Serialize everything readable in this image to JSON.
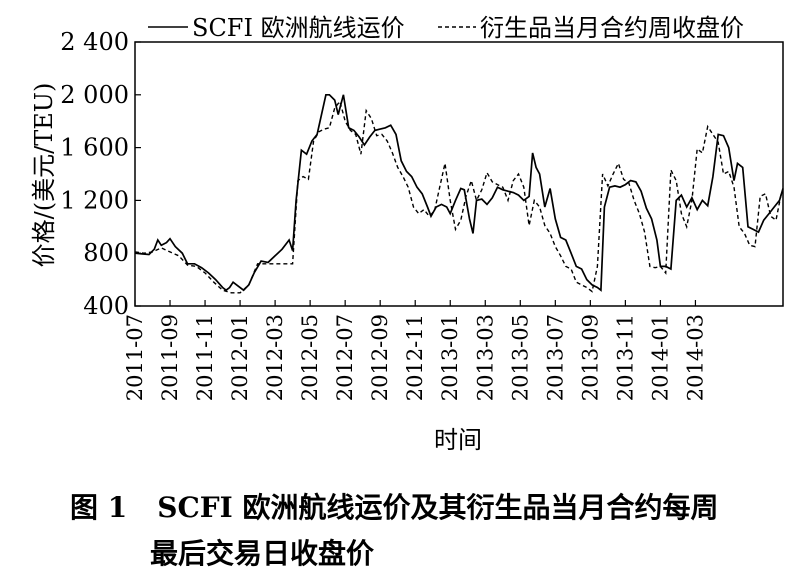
{
  "chart_data": {
    "type": "line",
    "ylabel": "价格/(美元/TEU)",
    "xlabel": "时间",
    "ylim": [
      400,
      2400
    ],
    "yticks": [
      "2 400",
      "2 000",
      "1 600",
      "1 200",
      "800",
      "400"
    ],
    "ytick_values": [
      2400,
      2000,
      1600,
      1200,
      800,
      400
    ],
    "xticks": [
      "2011-07",
      "2011-09",
      "2011-11",
      "2012-01",
      "2012-03",
      "2012-05",
      "2012-07",
      "2012-09",
      "2012-11",
      "2013-01",
      "2013-03",
      "2013-05",
      "2013-07",
      "2013-09",
      "2013-11",
      "2014-01",
      "2014-03"
    ],
    "x_range_months": [
      0,
      34.4
    ],
    "legend": "top",
    "series": [
      {
        "name": "SCFI 欧洲航线运价",
        "style": "solid",
        "points": [
          [
            0,
            800
          ],
          [
            0.4,
            795
          ],
          [
            0.8,
            790
          ],
          [
            1.1,
            830
          ],
          [
            1.3,
            900
          ],
          [
            1.5,
            860
          ],
          [
            1.8,
            880
          ],
          [
            2.0,
            910
          ],
          [
            2.3,
            850
          ],
          [
            2.7,
            800
          ],
          [
            3.0,
            720
          ],
          [
            3.4,
            720
          ],
          [
            3.8,
            690
          ],
          [
            4.2,
            650
          ],
          [
            4.6,
            600
          ],
          [
            5.0,
            540
          ],
          [
            5.2,
            520
          ],
          [
            5.4,
            540
          ],
          [
            5.6,
            580
          ],
          [
            5.9,
            550
          ],
          [
            6.2,
            520
          ],
          [
            6.5,
            560
          ],
          [
            6.8,
            650
          ],
          [
            7.2,
            740
          ],
          [
            7.6,
            730
          ],
          [
            8.0,
            780
          ],
          [
            8.4,
            830
          ],
          [
            8.8,
            900
          ],
          [
            9.0,
            820
          ],
          [
            9.2,
            1200
          ],
          [
            9.5,
            1580
          ],
          [
            9.8,
            1550
          ],
          [
            10.1,
            1650
          ],
          [
            10.4,
            1700
          ],
          [
            10.7,
            1880
          ],
          [
            10.9,
            2000
          ],
          [
            11.1,
            2000
          ],
          [
            11.4,
            1960
          ],
          [
            11.6,
            1850
          ],
          [
            11.9,
            2000
          ],
          [
            12.2,
            1750
          ],
          [
            12.5,
            1730
          ],
          [
            12.8,
            1680
          ],
          [
            13.1,
            1620
          ],
          [
            13.4,
            1680
          ],
          [
            13.7,
            1730
          ],
          [
            14.0,
            1740
          ],
          [
            14.3,
            1750
          ],
          [
            14.6,
            1770
          ],
          [
            14.9,
            1700
          ],
          [
            15.2,
            1500
          ],
          [
            15.5,
            1420
          ],
          [
            15.8,
            1380
          ],
          [
            16.1,
            1300
          ],
          [
            16.4,
            1250
          ],
          [
            16.7,
            1150
          ],
          [
            16.9,
            1080
          ],
          [
            17.2,
            1150
          ],
          [
            17.5,
            1170
          ],
          [
            17.8,
            1150
          ],
          [
            18.0,
            1100
          ],
          [
            18.3,
            1200
          ],
          [
            18.6,
            1290
          ],
          [
            18.8,
            1280
          ],
          [
            19.1,
            1060
          ],
          [
            19.3,
            950
          ],
          [
            19.5,
            1200
          ],
          [
            19.8,
            1210
          ],
          [
            20.1,
            1170
          ],
          [
            20.4,
            1220
          ],
          [
            20.7,
            1300
          ],
          [
            21.0,
            1280
          ],
          [
            21.3,
            1270
          ],
          [
            21.6,
            1260
          ],
          [
            21.9,
            1240
          ],
          [
            22.2,
            1200
          ],
          [
            22.5,
            1230
          ],
          [
            22.7,
            1560
          ],
          [
            22.9,
            1450
          ],
          [
            23.1,
            1400
          ],
          [
            23.4,
            1150
          ],
          [
            23.7,
            1290
          ],
          [
            24.0,
            1060
          ],
          [
            24.3,
            920
          ],
          [
            24.6,
            900
          ],
          [
            24.9,
            800
          ],
          [
            25.2,
            700
          ],
          [
            25.5,
            680
          ],
          [
            25.8,
            600
          ],
          [
            26.1,
            560
          ],
          [
            26.4,
            540
          ],
          [
            26.6,
            520
          ],
          [
            26.8,
            1150
          ],
          [
            27.1,
            1300
          ],
          [
            27.4,
            1310
          ],
          [
            27.7,
            1300
          ],
          [
            28.0,
            1320
          ],
          [
            28.3,
            1350
          ],
          [
            28.6,
            1340
          ],
          [
            28.9,
            1270
          ],
          [
            29.2,
            1140
          ],
          [
            29.5,
            1060
          ],
          [
            29.8,
            900
          ],
          [
            30.0,
            700
          ],
          [
            30.3,
            700
          ],
          [
            30.6,
            680
          ],
          [
            30.9,
            1200
          ],
          [
            31.2,
            1240
          ],
          [
            31.5,
            1150
          ],
          [
            31.8,
            1220
          ],
          [
            32.1,
            1130
          ],
          [
            32.4,
            1200
          ],
          [
            32.7,
            1160
          ],
          [
            33.0,
            1380
          ],
          [
            33.3,
            1700
          ],
          [
            33.6,
            1690
          ],
          [
            33.9,
            1600
          ],
          [
            34.2,
            1350
          ],
          [
            34.4,
            1480
          ],
          [
            34.7,
            1450
          ],
          [
            35.0,
            1000
          ],
          [
            35.3,
            980
          ],
          [
            35.6,
            960
          ],
          [
            35.9,
            1050
          ],
          [
            36.2,
            1100
          ],
          [
            36.5,
            1150
          ],
          [
            36.8,
            1200
          ],
          [
            37.0,
            1290
          ]
        ]
      },
      {
        "name": "衍生品当月合约周收盘价",
        "style": "dashed",
        "points": [
          [
            0,
            810
          ],
          [
            0.5,
            800
          ],
          [
            1.0,
            810
          ],
          [
            1.5,
            840
          ],
          [
            2.0,
            810
          ],
          [
            2.5,
            780
          ],
          [
            3.0,
            710
          ],
          [
            3.5,
            700
          ],
          [
            4.0,
            650
          ],
          [
            4.5,
            580
          ],
          [
            5.0,
            520
          ],
          [
            5.5,
            500
          ],
          [
            6.0,
            500
          ],
          [
            6.5,
            560
          ],
          [
            7.0,
            720
          ],
          [
            7.5,
            720
          ],
          [
            8.0,
            720
          ],
          [
            8.5,
            720
          ],
          [
            9.0,
            720
          ],
          [
            9.3,
            1350
          ],
          [
            9.6,
            1380
          ],
          [
            9.9,
            1360
          ],
          [
            10.2,
            1650
          ],
          [
            10.5,
            1720
          ],
          [
            10.8,
            1740
          ],
          [
            11.1,
            1750
          ],
          [
            11.4,
            1900
          ],
          [
            11.7,
            1950
          ],
          [
            12.0,
            1800
          ],
          [
            12.3,
            1730
          ],
          [
            12.6,
            1700
          ],
          [
            12.9,
            1550
          ],
          [
            13.2,
            1880
          ],
          [
            13.5,
            1820
          ],
          [
            13.8,
            1690
          ],
          [
            14.1,
            1700
          ],
          [
            14.4,
            1650
          ],
          [
            14.7,
            1560
          ],
          [
            15.0,
            1450
          ],
          [
            15.3,
            1380
          ],
          [
            15.6,
            1300
          ],
          [
            15.9,
            1150
          ],
          [
            16.2,
            1100
          ],
          [
            16.5,
            1130
          ],
          [
            16.8,
            1080
          ],
          [
            17.1,
            1120
          ],
          [
            17.4,
            1300
          ],
          [
            17.7,
            1480
          ],
          [
            18.0,
            1200
          ],
          [
            18.3,
            980
          ],
          [
            18.6,
            1050
          ],
          [
            18.9,
            1230
          ],
          [
            19.2,
            1350
          ],
          [
            19.5,
            1200
          ],
          [
            19.8,
            1280
          ],
          [
            20.1,
            1410
          ],
          [
            20.4,
            1340
          ],
          [
            20.7,
            1320
          ],
          [
            21.0,
            1300
          ],
          [
            21.3,
            1200
          ],
          [
            21.6,
            1350
          ],
          [
            21.9,
            1400
          ],
          [
            22.2,
            1300
          ],
          [
            22.5,
            1010
          ],
          [
            22.8,
            1200
          ],
          [
            23.1,
            1150
          ],
          [
            23.4,
            1010
          ],
          [
            23.7,
            950
          ],
          [
            24.0,
            850
          ],
          [
            24.3,
            780
          ],
          [
            24.6,
            700
          ],
          [
            24.9,
            680
          ],
          [
            25.2,
            580
          ],
          [
            25.5,
            560
          ],
          [
            25.8,
            540
          ],
          [
            26.1,
            510
          ],
          [
            26.4,
            700
          ],
          [
            26.7,
            1400
          ],
          [
            27.0,
            1310
          ],
          [
            27.3,
            1400
          ],
          [
            27.6,
            1480
          ],
          [
            27.9,
            1360
          ],
          [
            28.2,
            1330
          ],
          [
            28.5,
            1200
          ],
          [
            28.8,
            1100
          ],
          [
            29.1,
            960
          ],
          [
            29.4,
            700
          ],
          [
            29.7,
            690
          ],
          [
            30.0,
            700
          ],
          [
            30.3,
            650
          ],
          [
            30.6,
            1430
          ],
          [
            30.9,
            1350
          ],
          [
            31.2,
            1100
          ],
          [
            31.5,
            1000
          ],
          [
            31.8,
            1200
          ],
          [
            32.1,
            1590
          ],
          [
            32.4,
            1560
          ],
          [
            32.7,
            1760
          ],
          [
            33.0,
            1700
          ],
          [
            33.3,
            1640
          ],
          [
            33.6,
            1400
          ],
          [
            33.9,
            1420
          ],
          [
            34.2,
            1300
          ],
          [
            34.5,
            1000
          ],
          [
            34.8,
            950
          ],
          [
            35.1,
            860
          ],
          [
            35.4,
            850
          ],
          [
            35.7,
            1230
          ],
          [
            36.0,
            1250
          ],
          [
            36.3,
            1080
          ],
          [
            36.6,
            1050
          ],
          [
            36.9,
            1250
          ]
        ]
      }
    ]
  },
  "caption": {
    "figure_label": "图 1",
    "line1": "SCFI 欧洲航线运价及其衍生品当月合约每周",
    "line2": "最后交易日收盘价"
  }
}
